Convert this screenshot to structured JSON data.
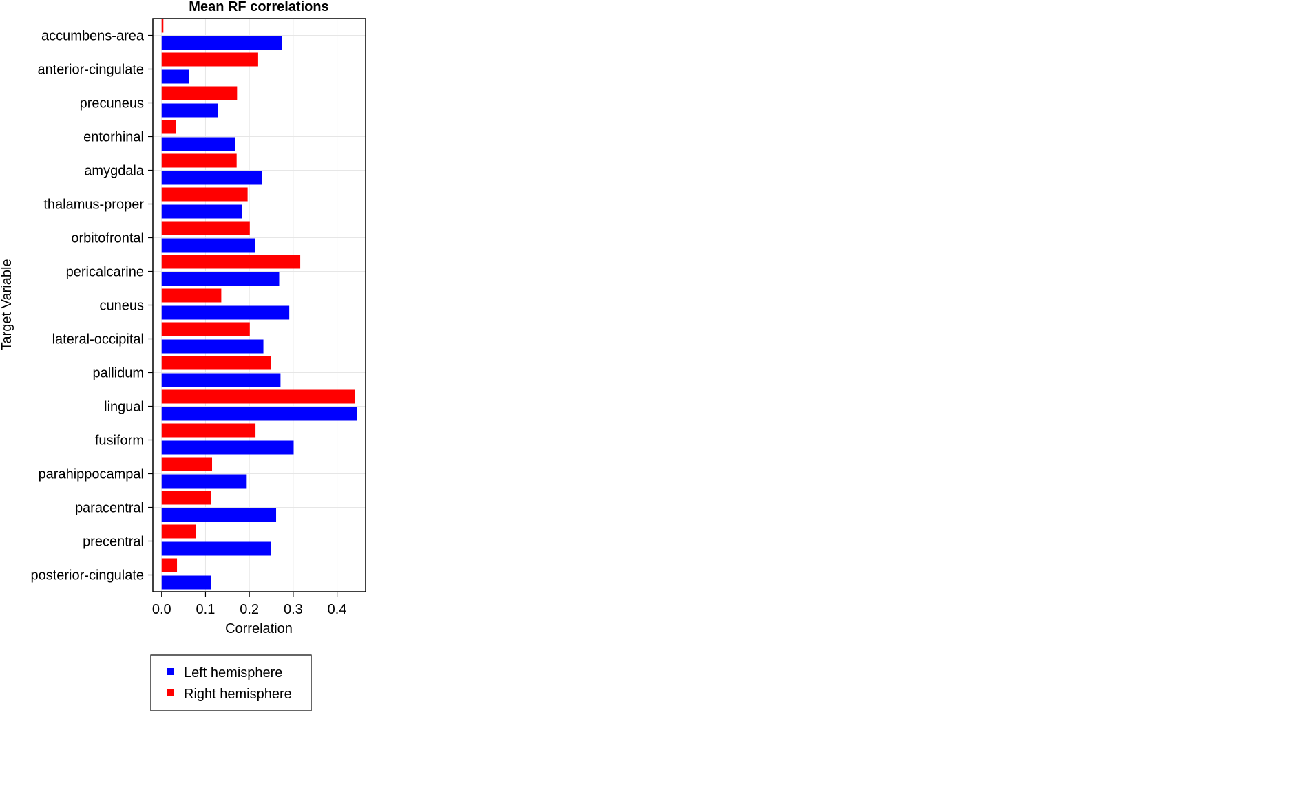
{
  "chart_data": {
    "type": "bar",
    "orientation": "horizontal",
    "title": "Mean RF correlations",
    "xlabel": "Correlation",
    "ylabel": "Target Variable",
    "xlim": [
      -0.02,
      0.465
    ],
    "xticks": [
      0.0,
      0.1,
      0.2,
      0.3,
      0.4
    ],
    "xtick_labels": [
      "0.0",
      "0.1",
      "0.2",
      "0.3",
      "0.4"
    ],
    "grid": true,
    "legend_position": "bottom-left",
    "categories": [
      "accumbens-area",
      "anterior-cingulate",
      "precuneus",
      "entorhinal",
      "amygdala",
      "thalamus-proper",
      "orbitofrontal",
      "pericalcarine",
      "cuneus",
      "lateral-occipital",
      "pallidum",
      "lingual",
      "fusiform",
      "parahippocampal",
      "paracentral",
      "precentral",
      "posterior-cingulate"
    ],
    "series": [
      {
        "name": "Left hemisphere",
        "color": "#0000ff",
        "values": [
          0.275,
          0.062,
          0.129,
          0.168,
          0.228,
          0.183,
          0.213,
          0.268,
          0.291,
          0.232,
          0.271,
          0.445,
          0.301,
          0.194,
          0.261,
          0.249,
          0.112
        ]
      },
      {
        "name": "Right hemisphere",
        "color": "#ff0000",
        "values": [
          0.004,
          0.22,
          0.172,
          0.033,
          0.171,
          0.196,
          0.201,
          0.316,
          0.136,
          0.201,
          0.249,
          0.441,
          0.214,
          0.115,
          0.112,
          0.078,
          0.035
        ]
      }
    ]
  }
}
